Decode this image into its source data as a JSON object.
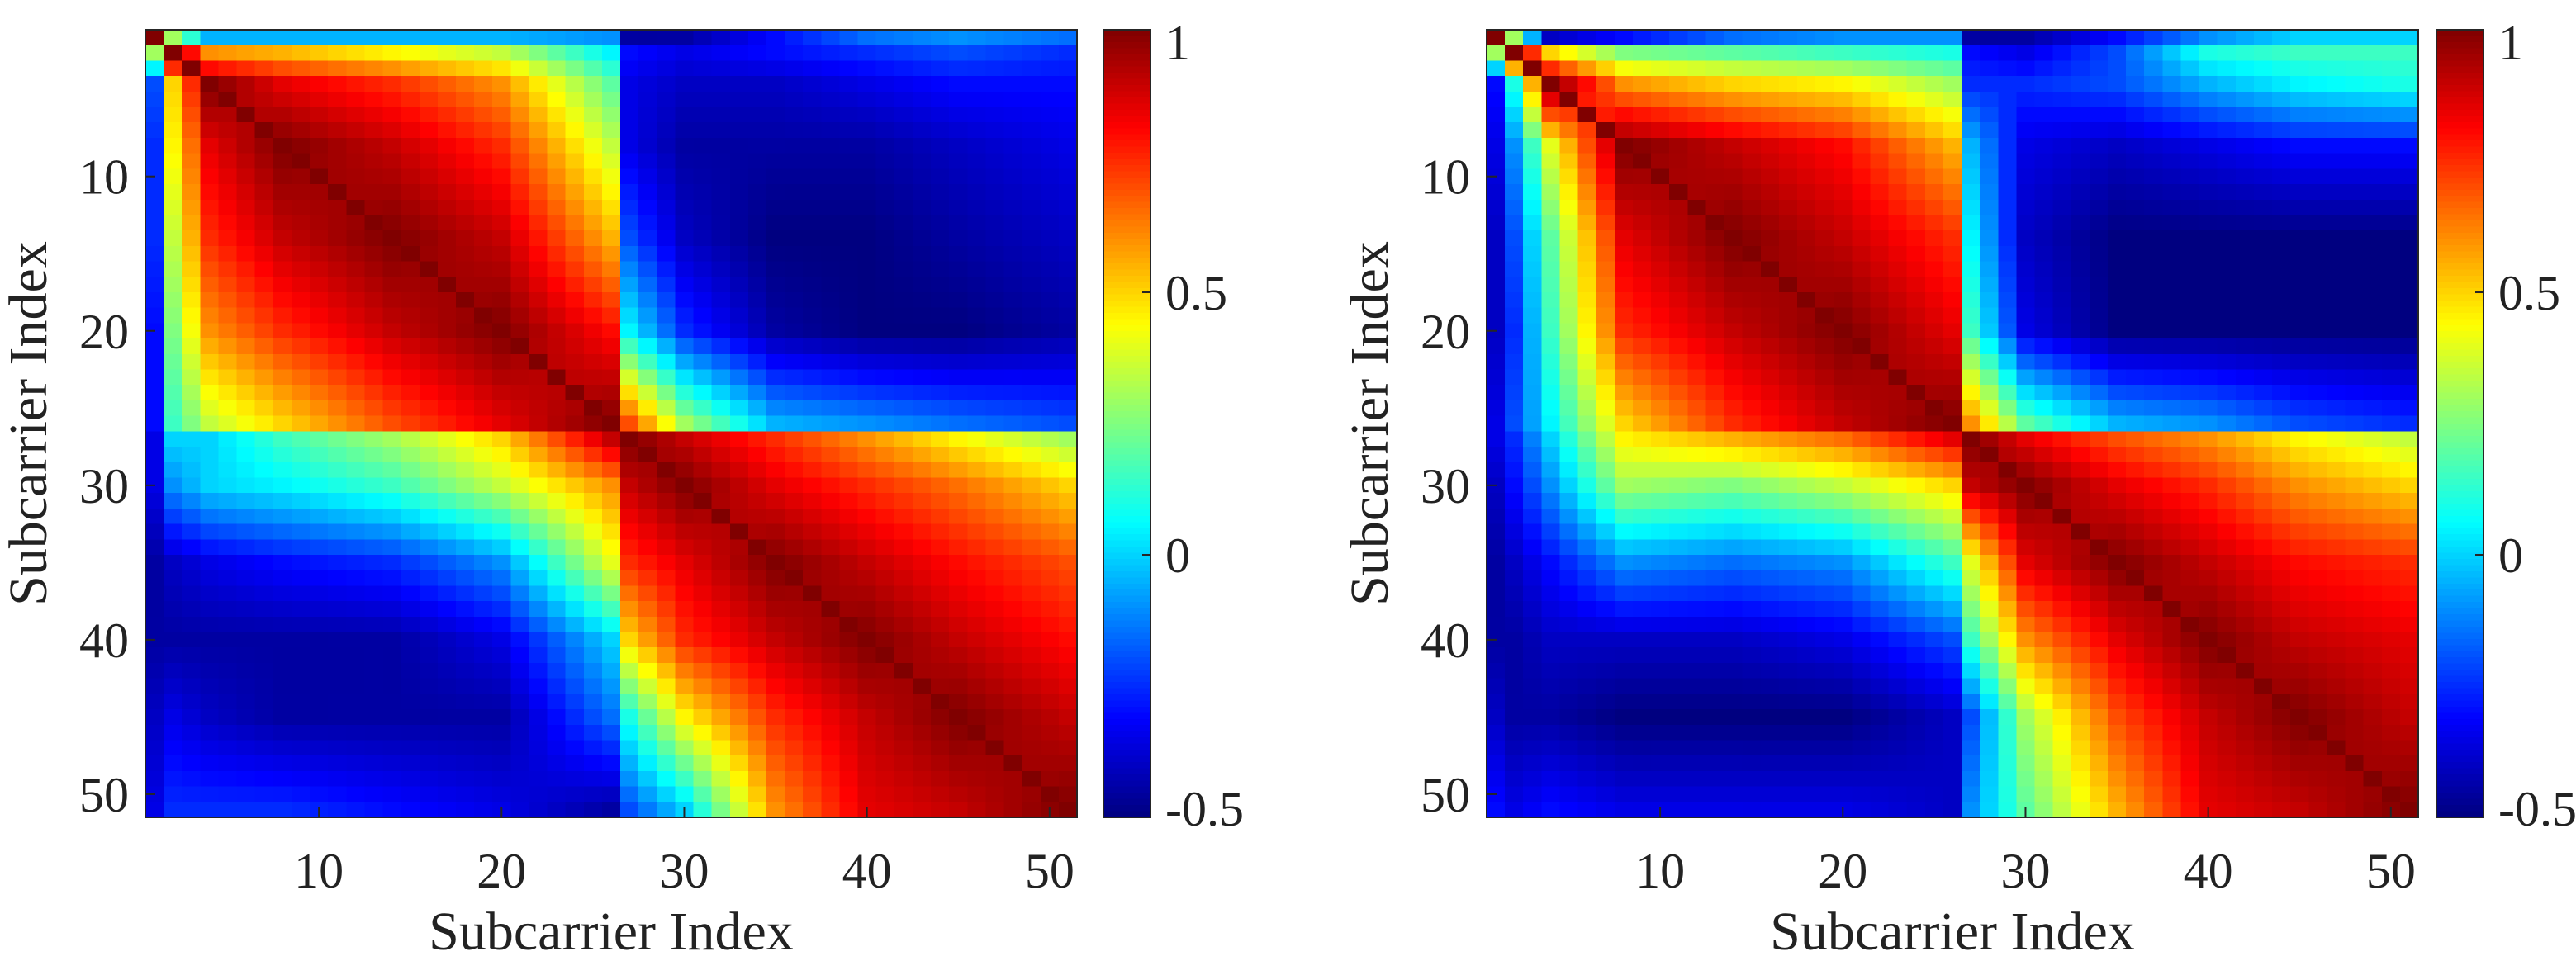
{
  "chart_data": [
    {
      "type": "heatmap",
      "title": "",
      "xlabel": "Subcarrier Index",
      "ylabel": "Subcarrier Index",
      "size": 51,
      "xticks": [
        10,
        20,
        30,
        40,
        50
      ],
      "yticks": [
        10,
        20,
        30,
        40,
        50
      ],
      "colormap": "jet",
      "clim": [
        -0.5,
        1
      ],
      "colorbar_ticks": [
        1,
        0.5,
        0,
        -0.5
      ],
      "colorbar_tick_labels": [
        "1",
        "0.5",
        "0",
        "-0.5"
      ],
      "diagonal_value": 1,
      "sample_indices": [
        1,
        2,
        4,
        8,
        14,
        20,
        26,
        27,
        30,
        35,
        40,
        45,
        51
      ],
      "matrix_sampled": [
        [
          1,
          0.3,
          -0.05,
          -0.05,
          -0.05,
          -0.05,
          -0.1,
          -0.45,
          -0.45,
          -0.3,
          -0.15,
          -0.1,
          -0.15
        ],
        [
          0.3,
          1,
          0.6,
          0.55,
          0.45,
          0.35,
          0.05,
          -0.3,
          -0.35,
          -0.3,
          -0.25,
          -0.2,
          -0.25
        ],
        [
          -0.2,
          0.5,
          1,
          0.85,
          0.75,
          0.6,
          0.2,
          -0.35,
          -0.4,
          -0.4,
          -0.35,
          -0.3,
          -0.3
        ],
        [
          -0.25,
          0.45,
          0.85,
          1,
          0.9,
          0.75,
          0.35,
          -0.35,
          -0.45,
          -0.45,
          -0.45,
          -0.4,
          -0.35
        ],
        [
          -0.25,
          0.35,
          0.75,
          0.9,
          1,
          0.9,
          0.55,
          -0.2,
          -0.4,
          -0.5,
          -0.5,
          -0.45,
          -0.4
        ],
        [
          -0.3,
          0.25,
          0.6,
          0.75,
          0.9,
          1,
          0.8,
          0.05,
          -0.25,
          -0.45,
          -0.5,
          -0.5,
          -0.45
        ],
        [
          -0.3,
          0.15,
          0.35,
          0.5,
          0.7,
          0.85,
          1,
          0.7,
          0.3,
          -0.05,
          -0.1,
          -0.15,
          -0.2
        ],
        [
          -0.35,
          0,
          0.0,
          0.15,
          0.3,
          0.5,
          0.9,
          1,
          0.9,
          0.75,
          0.6,
          0.45,
          0.3
        ],
        [
          -0.35,
          -0.1,
          0.0,
          0.05,
          0.15,
          0.35,
          0.6,
          0.9,
          1,
          0.85,
          0.75,
          0.65,
          0.5
        ],
        [
          -0.45,
          -0.4,
          -0.35,
          -0.3,
          -0.25,
          -0.1,
          0.4,
          0.75,
          0.85,
          1,
          0.9,
          0.8,
          0.7
        ],
        [
          -0.45,
          -0.45,
          -0.45,
          -0.45,
          -0.45,
          -0.35,
          0.0,
          0.5,
          0.75,
          0.9,
          1,
          0.9,
          0.8
        ],
        [
          -0.4,
          -0.35,
          -0.4,
          -0.45,
          -0.45,
          -0.45,
          -0.15,
          0.1,
          0.45,
          0.75,
          0.9,
          1,
          0.9
        ],
        [
          -0.35,
          -0.25,
          -0.25,
          -0.25,
          -0.3,
          -0.35,
          -0.45,
          -0.2,
          0.0,
          0.6,
          0.85,
          0.9,
          1
        ]
      ]
    },
    {
      "type": "heatmap",
      "title": "",
      "xlabel": "Subcarrier Index",
      "ylabel": "Subcarrier Index",
      "size": 51,
      "xticks": [
        10,
        20,
        30,
        40,
        50
      ],
      "yticks": [
        10,
        20,
        30,
        40,
        50
      ],
      "colormap": "jet",
      "clim": [
        -0.5,
        1
      ],
      "colorbar_ticks": [
        1,
        0.5,
        0,
        -0.5
      ],
      "colorbar_tick_labels": [
        "1",
        "0.5",
        "0",
        "-0.5"
      ],
      "diagonal_value": 1,
      "sample_indices": [
        1,
        2,
        4,
        8,
        14,
        20,
        26,
        27,
        30,
        35,
        40,
        45,
        51
      ],
      "matrix_sampled": [
        [
          1,
          0.3,
          -0.4,
          -0.3,
          -0.15,
          -0.1,
          -0.1,
          -0.45,
          -0.45,
          -0.3,
          -0.1,
          0.0,
          0.0
        ],
        [
          0.3,
          1,
          0.5,
          0.25,
          0.2,
          0.15,
          0.1,
          -0.3,
          -0.35,
          -0.2,
          0.1,
          0.15,
          0.15
        ],
        [
          -0.3,
          0.1,
          1,
          0.6,
          0.5,
          0.45,
          0.3,
          -0.25,
          -0.25,
          -0.2,
          -0.05,
          0.05,
          0.1
        ],
        [
          -0.35,
          -0.1,
          0.4,
          1,
          0.9,
          0.8,
          0.55,
          -0.05,
          -0.35,
          -0.4,
          -0.35,
          -0.3,
          -0.3
        ],
        [
          -0.4,
          -0.2,
          0.2,
          0.85,
          1,
          0.9,
          0.75,
          0.05,
          -0.4,
          -0.5,
          -0.5,
          -0.5,
          -0.5
        ],
        [
          -0.4,
          -0.25,
          0.15,
          0.75,
          0.9,
          1,
          0.85,
          0.15,
          -0.35,
          -0.5,
          -0.5,
          -0.5,
          -0.5
        ],
        [
          -0.35,
          -0.2,
          0.05,
          0.5,
          0.75,
          0.9,
          1,
          0.6,
          0.2,
          -0.05,
          -0.1,
          -0.2,
          -0.25
        ],
        [
          -0.35,
          -0.25,
          0.0,
          0.45,
          0.55,
          0.65,
          0.85,
          1,
          0.85,
          0.7,
          0.6,
          0.45,
          0.35
        ],
        [
          -0.4,
          -0.3,
          -0.1,
          0.3,
          0.25,
          0.35,
          0.5,
          0.9,
          1,
          0.85,
          0.75,
          0.6,
          0.5
        ],
        [
          -0.45,
          -0.4,
          -0.3,
          -0.1,
          -0.15,
          -0.1,
          0.15,
          0.4,
          0.85,
          1,
          0.9,
          0.8,
          0.75
        ],
        [
          -0.45,
          -0.45,
          -0.4,
          -0.4,
          -0.4,
          -0.35,
          -0.2,
          0.15,
          0.6,
          0.85,
          1,
          0.9,
          0.85
        ],
        [
          -0.4,
          -0.45,
          -0.45,
          -0.5,
          -0.5,
          -0.5,
          -0.4,
          -0.2,
          0.3,
          0.7,
          0.9,
          1,
          0.9
        ],
        [
          -0.3,
          -0.35,
          -0.3,
          -0.35,
          -0.35,
          -0.35,
          -0.4,
          -0.1,
          0.2,
          0.55,
          0.85,
          0.9,
          1
        ]
      ]
    }
  ]
}
